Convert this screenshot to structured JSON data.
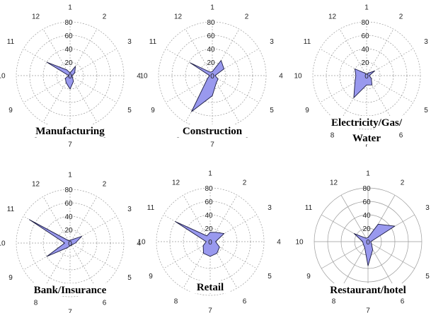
{
  "chart_data": [
    {
      "type": "radar",
      "title": "Manufacturing",
      "categories": [
        "1",
        "2",
        "3",
        "4",
        "5",
        "6",
        "7",
        "8",
        "9",
        "10",
        "11",
        "12"
      ],
      "radial_ticks": [
        "20",
        "40",
        "60",
        "80"
      ],
      "center_label": "0",
      "ylim": [
        0,
        80
      ],
      "grid": true,
      "grid_style": "dashed",
      "values": [
        4,
        16,
        8,
        3,
        4,
        10,
        20,
        12,
        8,
        2,
        40,
        10
      ]
    },
    {
      "type": "radar",
      "title": "Construction",
      "categories": [
        "1",
        "2",
        "3",
        "4",
        "5",
        "6",
        "7",
        "8",
        "9",
        "10",
        "11",
        "12"
      ],
      "radial_ticks": [
        "20",
        "40",
        "60",
        "80"
      ],
      "center_label": "0",
      "ylim": [
        0,
        80
      ],
      "grid": true,
      "grid_style": "dashed",
      "values": [
        6,
        26,
        20,
        4,
        10,
        12,
        30,
        62,
        8,
        4,
        38,
        6
      ]
    },
    {
      "type": "radar",
      "title": "Electricity/Gas/\nWater",
      "categories": [
        "1",
        "2",
        "3",
        "4",
        "5",
        "6",
        "7",
        "8",
        "9",
        "10",
        "11",
        "12"
      ],
      "radial_ticks": [
        "20",
        "40",
        "60",
        "80"
      ],
      "center_label": "0",
      "ylim": [
        0,
        80
      ],
      "grid": true,
      "grid_style": "dashed",
      "values": [
        2,
        4,
        14,
        4,
        8,
        16,
        14,
        38,
        20,
        16,
        20,
        4
      ]
    },
    {
      "type": "radar",
      "title": "Bank/Insurance",
      "categories": [
        "1",
        "2",
        "3",
        "4",
        "5",
        "6",
        "7",
        "8",
        "9",
        "10",
        "11",
        "12"
      ],
      "radial_ticks": [
        "20",
        "40",
        "60",
        "80"
      ],
      "center_label": "0",
      "ylim": [
        0,
        80
      ],
      "grid": true,
      "grid_style": "dashed",
      "values": [
        4,
        6,
        20,
        8,
        4,
        4,
        4,
        8,
        40,
        8,
        70,
        4
      ]
    },
    {
      "type": "radar",
      "title": "Retail",
      "categories": [
        "1",
        "2",
        "3",
        "4",
        "5",
        "6",
        "7",
        "8",
        "9",
        "10",
        "11",
        "12"
      ],
      "radial_ticks": [
        "20",
        "40",
        "60",
        "80"
      ],
      "center_label": "0",
      "ylim": [
        0,
        80
      ],
      "grid": true,
      "grid_style": "dashed",
      "values": [
        14,
        16,
        24,
        8,
        16,
        20,
        22,
        20,
        12,
        6,
        60,
        10
      ]
    },
    {
      "type": "radar",
      "title": "Restaurant/hotel",
      "categories": [
        "1",
        "2",
        "3",
        "4",
        "5",
        "6",
        "7",
        "8",
        "9",
        "10",
        "11",
        "12"
      ],
      "radial_ticks": [
        "20",
        "40",
        "60",
        "80"
      ],
      "center_label": "0",
      "ylim": [
        0,
        80
      ],
      "grid": true,
      "grid_style": "solid",
      "values": [
        6,
        30,
        46,
        4,
        6,
        14,
        36,
        10,
        8,
        8,
        24,
        6
      ]
    }
  ]
}
